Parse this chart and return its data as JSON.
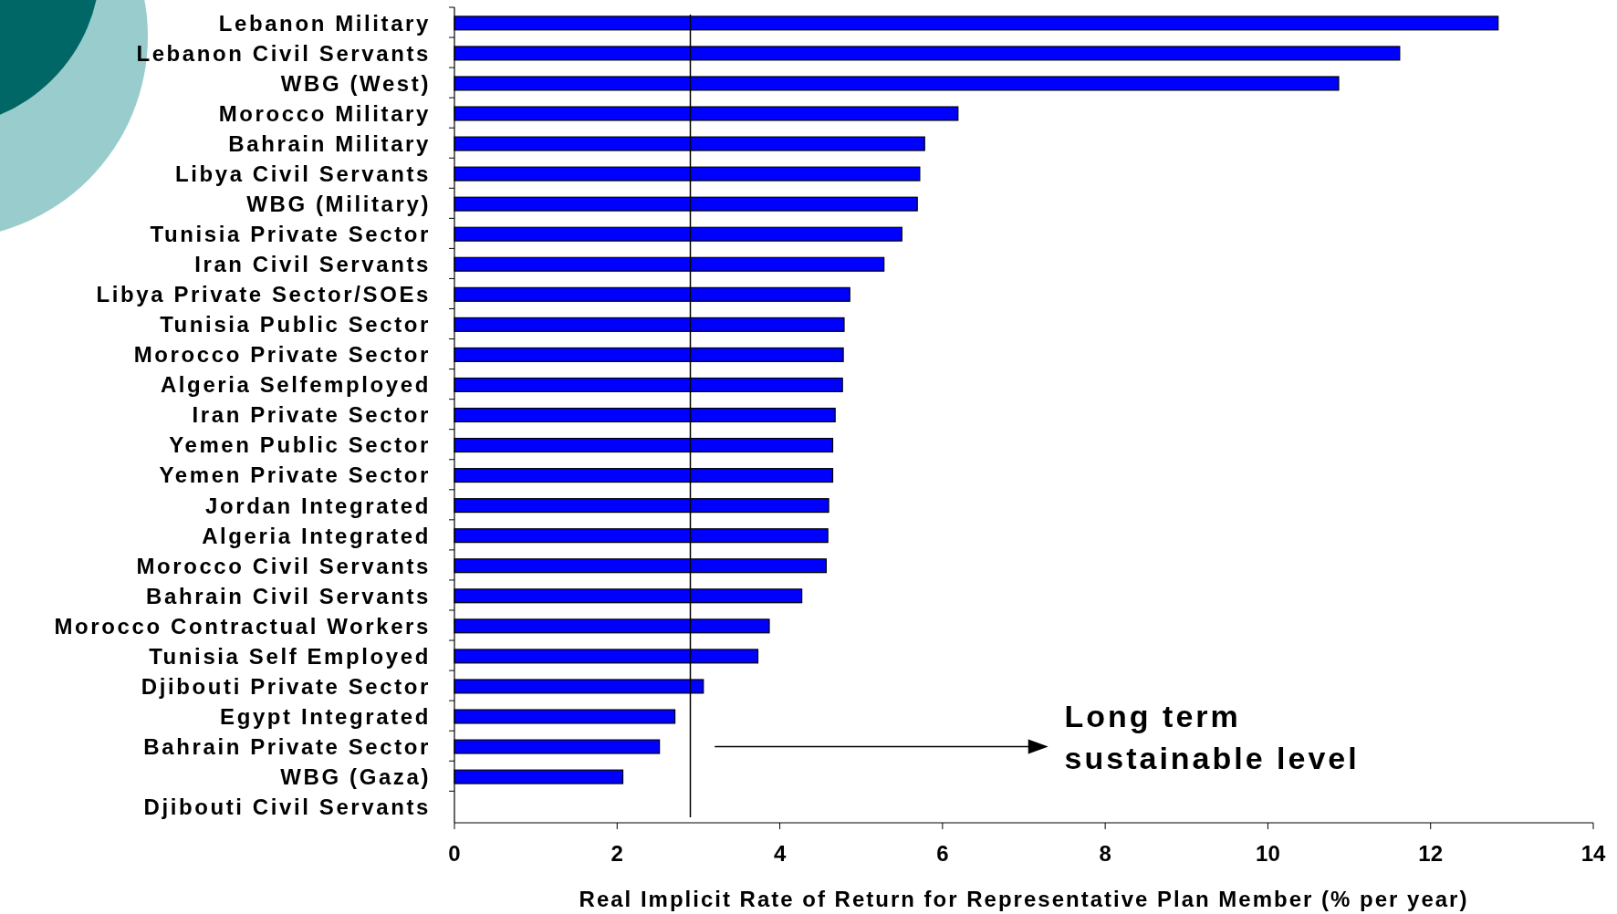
{
  "chart_data": {
    "type": "bar",
    "orientation": "horizontal",
    "xlabel": "Real Implicit Rate of Return for Representative Plan Member (% per year)",
    "categories": [
      "Lebanon Military",
      "Lebanon Civil Servants",
      "WBG (West)",
      "Morocco Military",
      "Bahrain Military",
      "Libya Civil Servants",
      "WBG (Military)",
      "Tunisia Private Sector",
      "Iran Civil Servants",
      "Libya Private Sector/SOEs",
      "Tunisia Public Sector",
      "Morocco Private Sector",
      "Algeria Selfemployed",
      "Iran Private Sector",
      "Yemen Public Sector",
      "Yemen Private Sector",
      "Jordan Integrated",
      "Algeria Integrated",
      "Morocco Civil Servants",
      "Bahrain Civil Servants",
      "Morocco Contractual Workers",
      "Tunisia Self Employed",
      "Djibouti Private Sector",
      "Egypt Integrated",
      "Bahrain Private Sector",
      "WBG (Gaza)",
      "Djibouti Civil Servants"
    ],
    "values": [
      12.83,
      11.62,
      10.87,
      6.19,
      5.78,
      5.72,
      5.69,
      5.5,
      5.28,
      4.86,
      4.79,
      4.78,
      4.77,
      4.68,
      4.65,
      4.65,
      4.6,
      4.59,
      4.57,
      4.27,
      3.87,
      3.73,
      3.06,
      2.71,
      2.52,
      2.07,
      null
    ],
    "color": "#0000ff",
    "xlim": [
      0,
      14
    ],
    "xticks": [
      0,
      2,
      4,
      6,
      8,
      10,
      12,
      14
    ],
    "ref_lines": [
      {
        "axis": "x",
        "value": 2.9,
        "color": "#000000"
      }
    ],
    "annotations": [
      "Long term sustainable level"
    ]
  }
}
